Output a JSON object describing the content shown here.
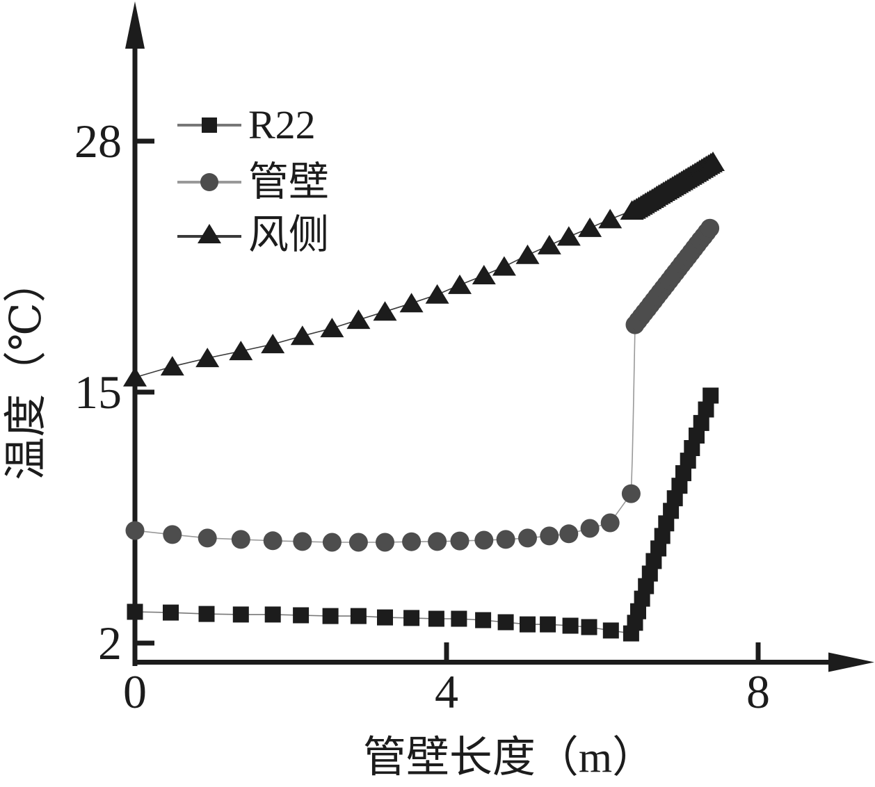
{
  "figure": {
    "background": "#ffffff",
    "ink_color": "#1c1c1c",
    "gray_color": "#4d4d4d"
  },
  "chart_data": {
    "type": "line",
    "title": "",
    "xlabel": "管壁长度（m）",
    "ylabel": "温度（℃）",
    "xlim": [
      0,
      9.5
    ],
    "ylim": [
      2,
      35
    ],
    "grid": false,
    "legend_position": "top-left-inside",
    "x_ticks": [
      {
        "value": 0,
        "label": "0",
        "mark": false
      },
      {
        "value": 4,
        "label": "4",
        "mark": true
      },
      {
        "value": 8,
        "label": "8",
        "mark": true
      }
    ],
    "y_ticks": [
      {
        "value": 2,
        "label": "2",
        "mark": true
      },
      {
        "value": 15,
        "label": "15",
        "mark": true
      },
      {
        "value": 28,
        "label": "28",
        "mark": true
      }
    ],
    "series": [
      {
        "name": "R22",
        "marker": "square",
        "color": "#1c1c1c",
        "line_color": "#777777",
        "x": [
          0,
          0.46,
          0.92,
          1.36,
          1.77,
          2.13,
          2.51,
          2.87,
          3.21,
          3.55,
          3.87,
          4.16,
          4.47,
          4.76,
          5.04,
          5.3,
          5.59,
          5.83,
          6.11,
          6.37,
          6.42,
          6.46,
          6.51,
          6.56,
          6.61,
          6.66,
          6.72,
          6.77,
          6.82,
          6.88,
          6.93,
          6.99,
          7.04,
          7.1,
          7.15,
          7.21,
          7.27,
          7.33,
          7.39
        ],
        "y": [
          3.62,
          3.58,
          3.51,
          3.48,
          3.48,
          3.44,
          3.4,
          3.4,
          3.33,
          3.3,
          3.26,
          3.26,
          3.19,
          3.08,
          2.97,
          2.97,
          2.9,
          2.83,
          2.65,
          2.5,
          3.05,
          3.65,
          4.3,
          4.95,
          5.6,
          6.25,
          6.9,
          7.55,
          8.2,
          8.85,
          9.5,
          10.15,
          10.8,
          11.45,
          12.1,
          12.75,
          13.4,
          14.1,
          14.82
        ]
      },
      {
        "name": "管壁",
        "marker": "circle",
        "color": "#4d4d4d",
        "line_color": "#999999",
        "x": [
          0,
          0.48,
          0.93,
          1.36,
          1.77,
          2.15,
          2.53,
          2.87,
          3.21,
          3.55,
          3.88,
          4.17,
          4.48,
          4.76,
          5.04,
          5.32,
          5.57,
          5.84,
          6.1,
          6.37,
          6.42,
          6.46,
          6.5,
          6.54,
          6.58,
          6.62,
          6.66,
          6.7,
          6.74,
          6.78,
          6.82,
          6.86,
          6.9,
          6.94,
          6.98,
          7.02,
          7.06,
          7.1,
          7.14,
          7.18,
          7.22,
          7.26,
          7.3,
          7.34,
          7.38
        ],
        "y": [
          7.83,
          7.62,
          7.44,
          7.37,
          7.3,
          7.26,
          7.22,
          7.22,
          7.22,
          7.25,
          7.26,
          7.29,
          7.33,
          7.37,
          7.44,
          7.55,
          7.66,
          7.94,
          8.23,
          9.74,
          18.49,
          18.7,
          18.91,
          19.12,
          19.32,
          19.53,
          19.74,
          19.95,
          20.16,
          20.37,
          20.57,
          20.78,
          20.99,
          21.2,
          21.41,
          21.62,
          21.82,
          22.03,
          22.24,
          22.45,
          22.66,
          22.87,
          23.07,
          23.28,
          23.49
        ],
        "line_insert": {
          "after_index": 19,
          "x": [
            6.385,
            6.398,
            6.41,
            6.416
          ],
          "y": [
            11.6,
            14.0,
            16.4,
            17.7
          ]
        }
      },
      {
        "name": "风侧",
        "marker": "triangle",
        "color": "#1c1c1c",
        "line_color": "#3a3a3a",
        "x": [
          0,
          0.48,
          0.93,
          1.36,
          1.77,
          2.15,
          2.53,
          2.87,
          3.21,
          3.55,
          3.88,
          4.17,
          4.48,
          4.74,
          5.04,
          5.32,
          5.57,
          5.84,
          6.1,
          6.38,
          6.41,
          6.439,
          6.468,
          6.497,
          6.525,
          6.554,
          6.583,
          6.612,
          6.641,
          6.67,
          6.699,
          6.728,
          6.757,
          6.785,
          6.814,
          6.843,
          6.872,
          6.901,
          6.93,
          6.959,
          6.988,
          7.017,
          7.045,
          7.074,
          7.103,
          7.132,
          7.161,
          7.19,
          7.219,
          7.248,
          7.277,
          7.305,
          7.334,
          7.363,
          7.392,
          7.42
        ],
        "y": [
          15.76,
          16.33,
          16.76,
          17.12,
          17.48,
          17.91,
          18.31,
          18.74,
          19.17,
          19.6,
          20.05,
          20.55,
          21.05,
          21.5,
          22.1,
          22.6,
          23.05,
          23.5,
          23.95,
          24.4,
          24.45,
          24.52,
          24.59,
          24.66,
          24.73,
          24.8,
          24.87,
          24.94,
          25.01,
          25.08,
          25.16,
          25.23,
          25.3,
          25.37,
          25.44,
          25.51,
          25.58,
          25.65,
          25.72,
          25.79,
          25.86,
          25.93,
          26.0,
          26.07,
          26.14,
          26.21,
          26.28,
          26.35,
          26.42,
          26.5,
          26.57,
          26.64,
          26.71,
          26.78,
          26.85,
          26.92
        ]
      }
    ]
  }
}
